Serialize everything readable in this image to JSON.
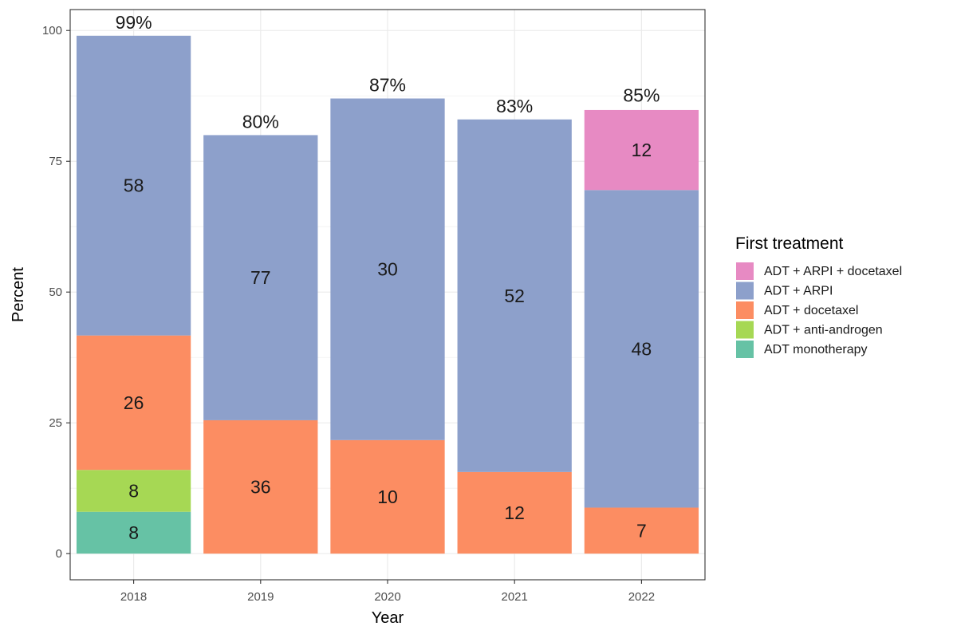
{
  "chart_data": {
    "type": "bar",
    "stacked": true,
    "xlabel": "Year",
    "ylabel": "Percent",
    "ylim": [
      -5,
      104
    ],
    "yticks": [
      0,
      25,
      50,
      75,
      100
    ],
    "grid": true,
    "legend_position": "right",
    "categories": [
      "2018",
      "2019",
      "2020",
      "2021",
      "2022"
    ],
    "totals": [
      99,
      80,
      87,
      83,
      85
    ],
    "total_labels": [
      "99%",
      "80%",
      "87%",
      "83%",
      "85%"
    ],
    "legend": {
      "title": "First treatment",
      "entries": [
        {
          "name": "ADT + ARPI + docetaxel",
          "color": "#e78ac3"
        },
        {
          "name": "ADT + ARPI",
          "color": "#8da0cb"
        },
        {
          "name": "ADT + docetaxel",
          "color": "#fc8d62"
        },
        {
          "name": "ADT + anti-androgen",
          "color": "#a6d854"
        },
        {
          "name": "ADT monotherapy",
          "color": "#66c2a5"
        }
      ]
    },
    "series": [
      {
        "name": "ADT monotherapy",
        "color": "#66c2a5",
        "values": [
          8,
          0,
          0,
          0,
          0
        ],
        "labels": [
          "8",
          null,
          null,
          null,
          null
        ]
      },
      {
        "name": "ADT + anti-androgen",
        "color": "#a6d854",
        "values": [
          8,
          0,
          0,
          0,
          0
        ],
        "labels": [
          "8",
          null,
          null,
          null,
          null
        ]
      },
      {
        "name": "ADT + docetaxel",
        "color": "#fc8d62",
        "values": [
          25.7,
          25.5,
          21.7,
          15.6,
          8.8
        ],
        "labels": [
          "26",
          "36",
          "10",
          "12",
          "7"
        ]
      },
      {
        "name": "ADT + ARPI",
        "color": "#8da0cb",
        "values": [
          57.3,
          54.5,
          65.3,
          67.4,
          60.7
        ],
        "labels": [
          "58",
          "77",
          "30",
          "52",
          "48"
        ]
      },
      {
        "name": "ADT + ARPI + docetaxel",
        "color": "#e78ac3",
        "values": [
          0,
          0,
          0,
          0,
          15.3
        ],
        "labels": [
          null,
          null,
          null,
          null,
          "12"
        ]
      }
    ]
  }
}
